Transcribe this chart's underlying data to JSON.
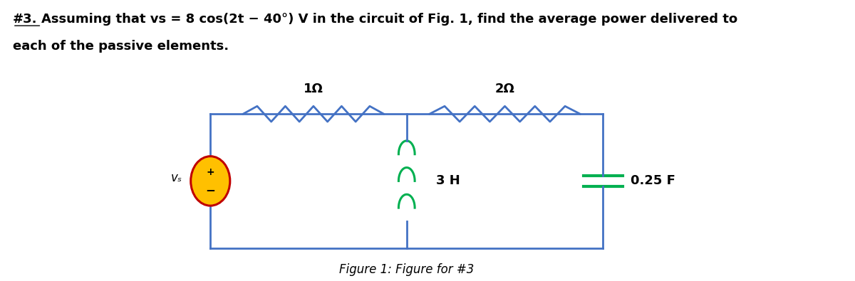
{
  "figure_caption": "Figure 1: Figure for #3",
  "bg_color": "#ffffff",
  "circuit_line_color": "#4472c4",
  "resistor_color": "#4472c4",
  "inductor_color": "#00b050",
  "capacitor_color": "#00b050",
  "source_fill": "#ffc000",
  "source_outline": "#c00000",
  "label_1ohm": "1Ω",
  "label_2ohm": "2Ω",
  "label_3H": "3 H",
  "label_025F": "0.25 F",
  "label_vs": "vₛ",
  "title_hash": "#3.",
  "title_rest": "Assuming that vs = 8 cos(2t − 40°) V in the circuit of Fig. 1, find the average power delivered to",
  "title_line2": "each of the passive elements."
}
